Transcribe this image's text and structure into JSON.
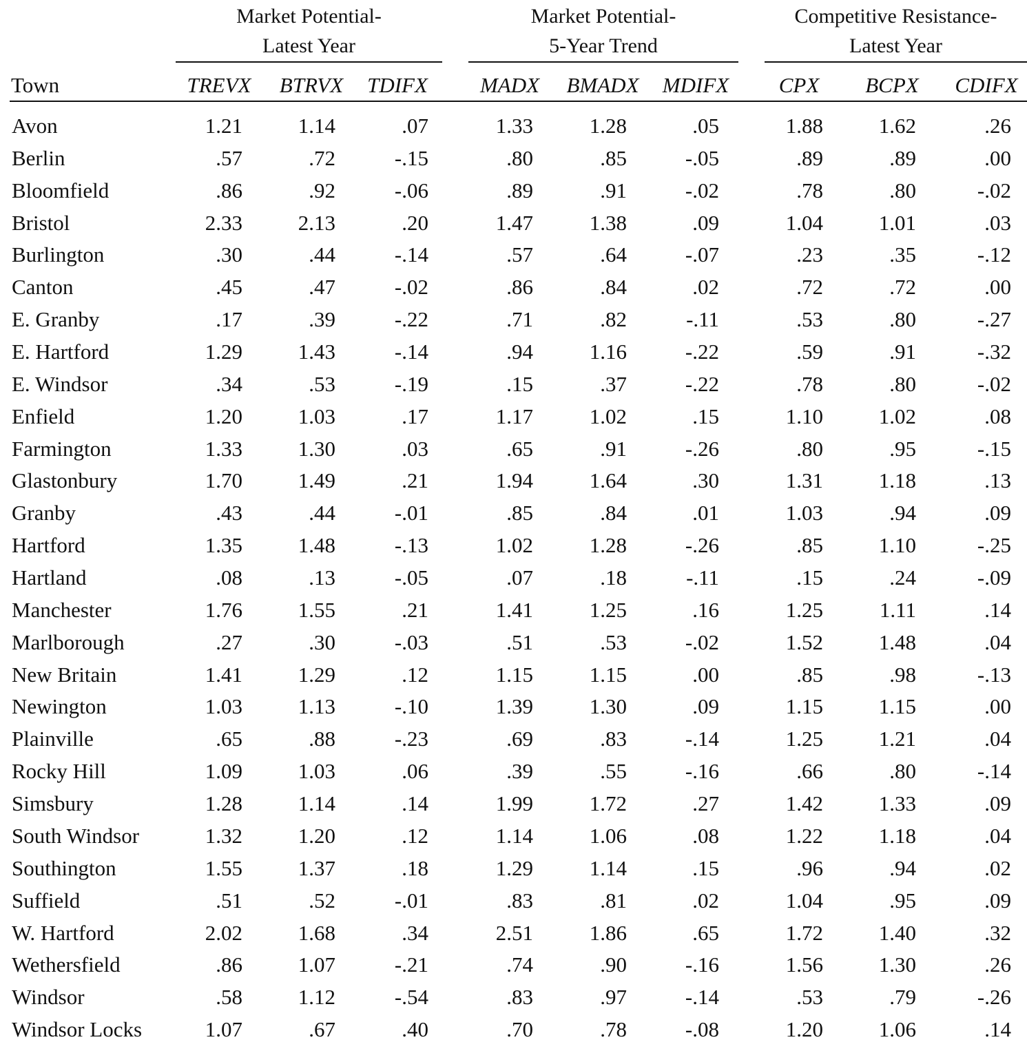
{
  "table": {
    "groups": [
      {
        "lines": [
          "Market Potential-",
          "Latest Year"
        ]
      },
      {
        "lines": [
          "Market Potential-",
          "5-Year Trend"
        ]
      },
      {
        "lines": [
          "Competitive Resistance-",
          "Latest Year"
        ]
      }
    ],
    "columns": [
      "Town",
      "TREVX",
      "BTRVX",
      "TDIFX",
      "MADX",
      "BMADX",
      "MDIFX",
      "CPX",
      "BCPX",
      "CDIFX"
    ],
    "rows": [
      [
        "Avon",
        "1.21",
        "1.14",
        ".07",
        "1.33",
        "1.28",
        ".05",
        "1.88",
        "1.62",
        ".26"
      ],
      [
        "Berlin",
        ".57",
        ".72",
        "-.15",
        ".80",
        ".85",
        "-.05",
        ".89",
        ".89",
        ".00"
      ],
      [
        "Bloomfield",
        ".86",
        ".92",
        "-.06",
        ".89",
        ".91",
        "-.02",
        ".78",
        ".80",
        "-.02"
      ],
      [
        "Bristol",
        "2.33",
        "2.13",
        ".20",
        "1.47",
        "1.38",
        ".09",
        "1.04",
        "1.01",
        ".03"
      ],
      [
        "Burlington",
        ".30",
        ".44",
        "-.14",
        ".57",
        ".64",
        "-.07",
        ".23",
        ".35",
        "-.12"
      ],
      [
        "Canton",
        ".45",
        ".47",
        "-.02",
        ".86",
        ".84",
        ".02",
        ".72",
        ".72",
        ".00"
      ],
      [
        "E. Granby",
        ".17",
        ".39",
        "-.22",
        ".71",
        ".82",
        "-.11",
        ".53",
        ".80",
        "-.27"
      ],
      [
        "E. Hartford",
        "1.29",
        "1.43",
        "-.14",
        ".94",
        "1.16",
        "-.22",
        ".59",
        ".91",
        "-.32"
      ],
      [
        "E. Windsor",
        ".34",
        ".53",
        "-.19",
        ".15",
        ".37",
        "-.22",
        ".78",
        ".80",
        "-.02"
      ],
      [
        "Enfield",
        "1.20",
        "1.03",
        ".17",
        "1.17",
        "1.02",
        ".15",
        "1.10",
        "1.02",
        ".08"
      ],
      [
        "Farmington",
        "1.33",
        "1.30",
        ".03",
        ".65",
        ".91",
        "-.26",
        ".80",
        ".95",
        "-.15"
      ],
      [
        "Glastonbury",
        "1.70",
        "1.49",
        ".21",
        "1.94",
        "1.64",
        ".30",
        "1.31",
        "1.18",
        ".13"
      ],
      [
        "Granby",
        ".43",
        ".44",
        "-.01",
        ".85",
        ".84",
        ".01",
        "1.03",
        ".94",
        ".09"
      ],
      [
        "Hartford",
        "1.35",
        "1.48",
        "-.13",
        "1.02",
        "1.28",
        "-.26",
        ".85",
        "1.10",
        "-.25"
      ],
      [
        "Hartland",
        ".08",
        ".13",
        "-.05",
        ".07",
        ".18",
        "-.11",
        ".15",
        ".24",
        "-.09"
      ],
      [
        "Manchester",
        "1.76",
        "1.55",
        ".21",
        "1.41",
        "1.25",
        ".16",
        "1.25",
        "1.11",
        ".14"
      ],
      [
        "Marlborough",
        ".27",
        ".30",
        "-.03",
        ".51",
        ".53",
        "-.02",
        "1.52",
        "1.48",
        ".04"
      ],
      [
        "New Britain",
        "1.41",
        "1.29",
        ".12",
        "1.15",
        "1.15",
        ".00",
        ".85",
        ".98",
        "-.13"
      ],
      [
        "Newington",
        "1.03",
        "1.13",
        "-.10",
        "1.39",
        "1.30",
        ".09",
        "1.15",
        "1.15",
        ".00"
      ],
      [
        "Plainville",
        ".65",
        ".88",
        "-.23",
        ".69",
        ".83",
        "-.14",
        "1.25",
        "1.21",
        ".04"
      ],
      [
        "Rocky Hill",
        "1.09",
        "1.03",
        ".06",
        ".39",
        ".55",
        "-.16",
        ".66",
        ".80",
        "-.14"
      ],
      [
        "Simsbury",
        "1.28",
        "1.14",
        ".14",
        "1.99",
        "1.72",
        ".27",
        "1.42",
        "1.33",
        ".09"
      ],
      [
        "South Windsor",
        "1.32",
        "1.20",
        ".12",
        "1.14",
        "1.06",
        ".08",
        "1.22",
        "1.18",
        ".04"
      ],
      [
        "Southington",
        "1.55",
        "1.37",
        ".18",
        "1.29",
        "1.14",
        ".15",
        ".96",
        ".94",
        ".02"
      ],
      [
        "Suffield",
        ".51",
        ".52",
        "-.01",
        ".83",
        ".81",
        ".02",
        "1.04",
        ".95",
        ".09"
      ],
      [
        "W. Hartford",
        "2.02",
        "1.68",
        ".34",
        "2.51",
        "1.86",
        ".65",
        "1.72",
        "1.40",
        ".32"
      ],
      [
        "Wethersfield",
        ".86",
        "1.07",
        "-.21",
        ".74",
        ".90",
        "-.16",
        "1.56",
        "1.30",
        ".26"
      ],
      [
        "Windsor",
        ".58",
        "1.12",
        "-.54",
        ".83",
        ".97",
        "-.14",
        ".53",
        ".79",
        "-.26"
      ],
      [
        "Windsor Locks",
        "1.07",
        ".67",
        ".40",
        ".70",
        ".78",
        "-.08",
        "1.20",
        "1.06",
        ".14"
      ]
    ]
  }
}
